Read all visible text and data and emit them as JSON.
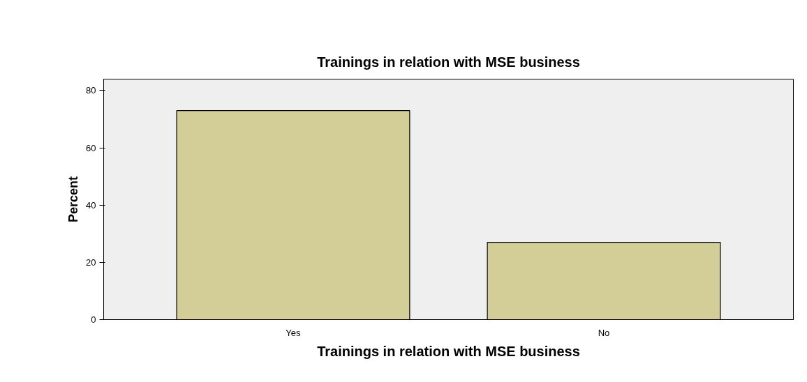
{
  "chart_data": {
    "type": "bar",
    "title": "Trainings in relation with MSE business",
    "xlabel": "Trainings in relation with MSE business",
    "ylabel": "Percent",
    "categories": [
      "Yes",
      "No"
    ],
    "values": [
      73,
      27
    ],
    "color": "#d3ce98",
    "ylim": [
      0,
      84
    ],
    "yticks": [
      0,
      20,
      40,
      60,
      80
    ],
    "grid": false
  }
}
